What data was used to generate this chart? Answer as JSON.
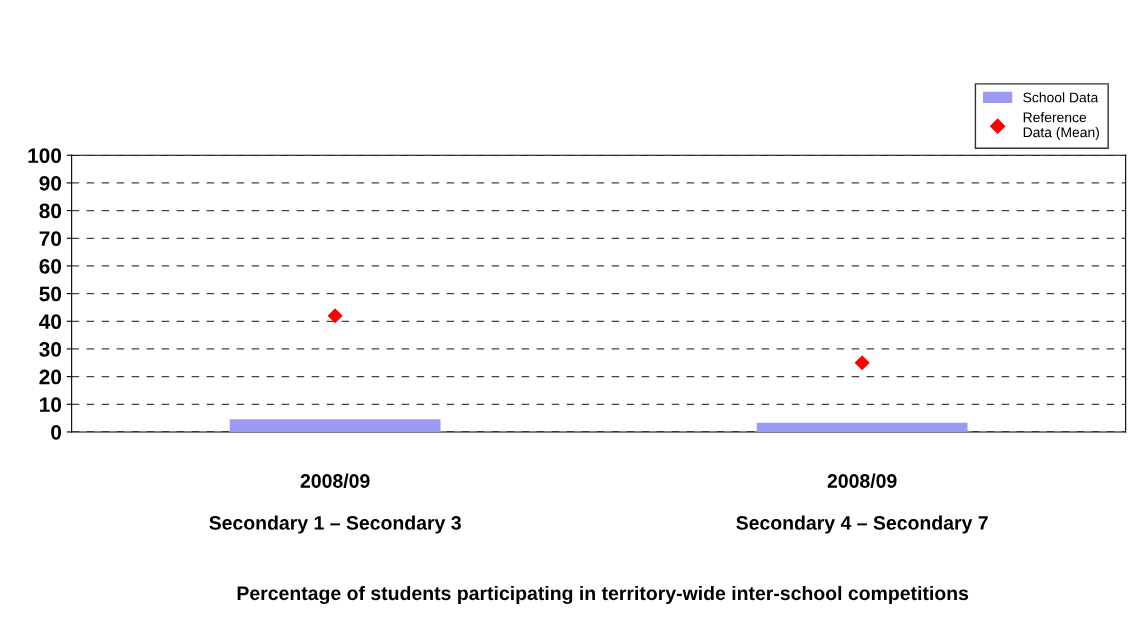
{
  "chart_data": {
    "type": "bar",
    "annotations": [
      "Percentage of students participating in territory-wide inter-school competitions"
    ],
    "categories": [
      "2008/09\n\nSecondary 1 – Secondary 3",
      "2008/09\n\nSecondary 4 – Secondary 7"
    ],
    "series": [
      {
        "name": "School Data",
        "color": "#9a9af2",
        "values": [
          4.6,
          3.3
        ]
      },
      {
        "name": "Reference\nData (Mean)",
        "type": "scatter",
        "color": "#ff0000",
        "marker": "diamond",
        "x": [
          "2008/09\n\nSecondary 1 – Secondary 3",
          "2008/09\n\nSecondary 4 – Secondary 7"
        ],
        "values": [
          42,
          25
        ]
      }
    ],
    "ylim": [
      0,
      100
    ],
    "yticks": [
      0,
      10,
      20,
      30,
      40,
      50,
      60,
      70,
      80,
      90,
      100
    ],
    "grid": "y",
    "legend": "top right"
  }
}
